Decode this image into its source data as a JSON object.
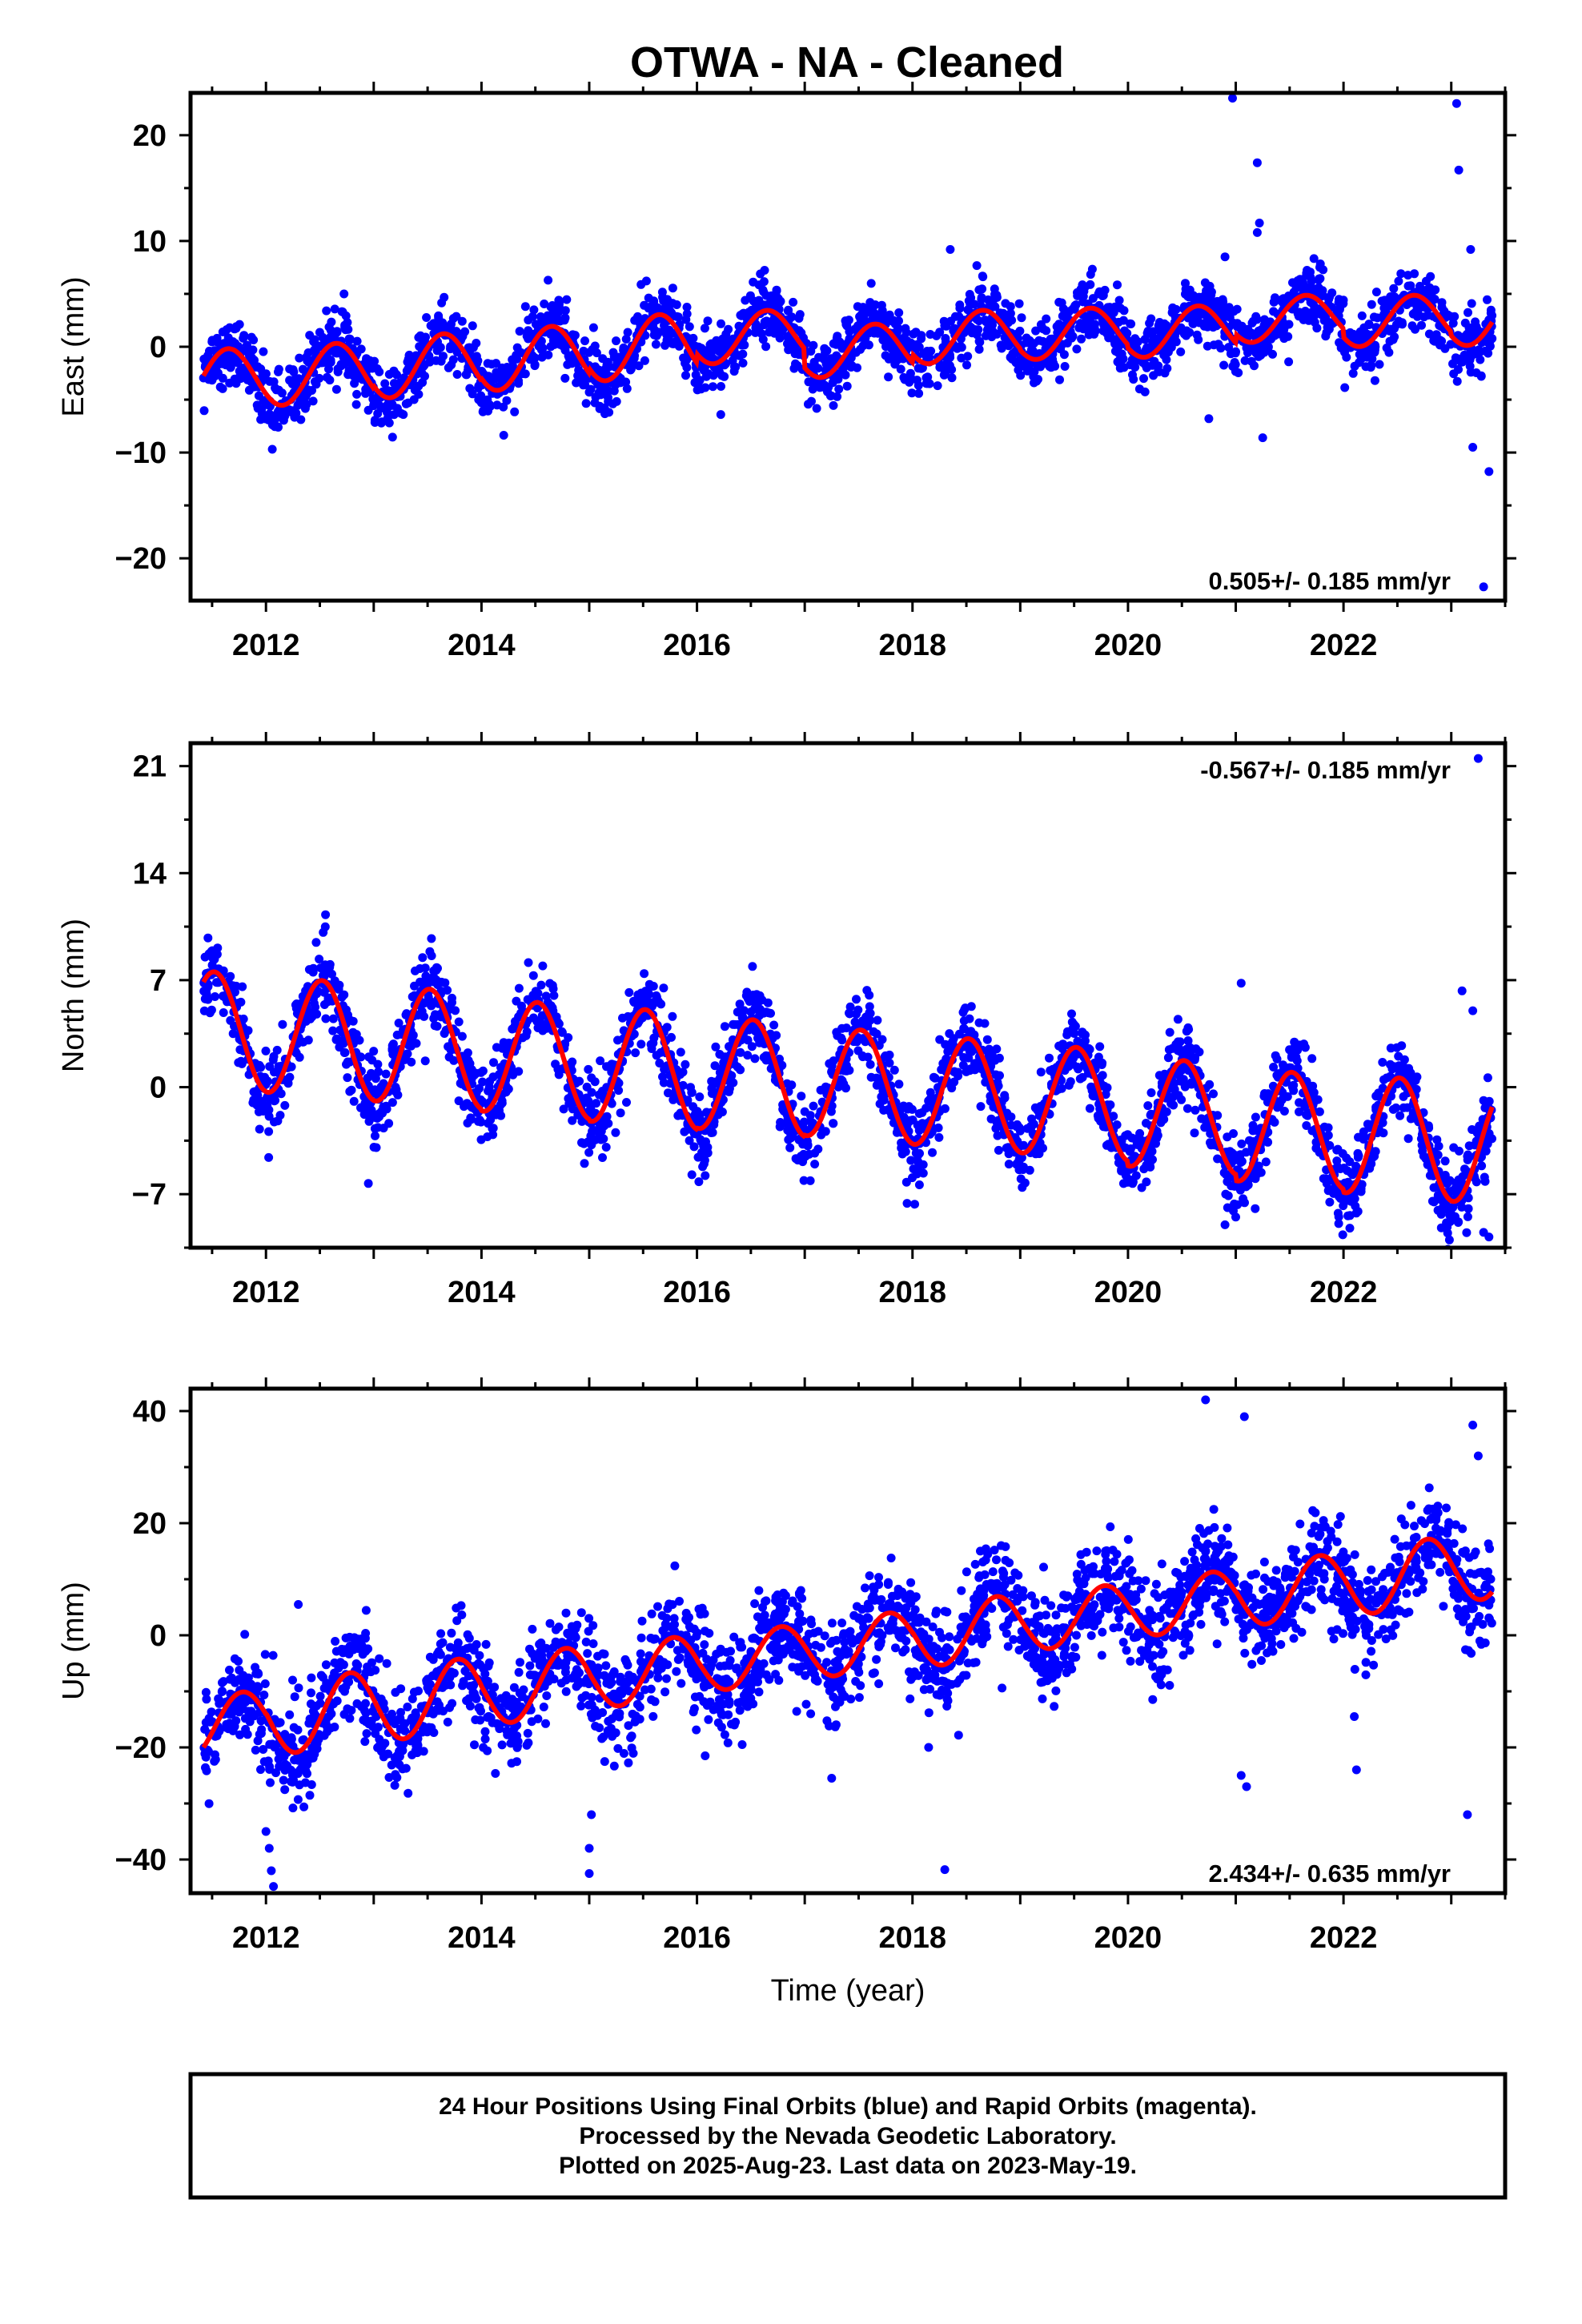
{
  "figure": {
    "title": "OTWA  - NA - Cleaned",
    "footer_lines": [
      "24 Hour Positions Using Final Orbits (blue) and Rapid Orbits (magenta).",
      "Processed by the Nevada Geodetic Laboratory.",
      "Plotted on 2025-Aug-23. Last data on 2023-May-19."
    ],
    "colors": {
      "points": "#0000ff",
      "model": "#ff0000",
      "frame": "#000000"
    }
  },
  "chart_data": [
    {
      "type": "scatter",
      "name": "east",
      "ylabel": "East (mm)",
      "xlabel": "",
      "xlim": [
        2011.3,
        2023.5
      ],
      "ylim": [
        -24,
        24
      ],
      "xticks": [
        2012,
        2014,
        2016,
        2018,
        2020,
        2022
      ],
      "xtick_labels": [
        "2012",
        "2014",
        "2016",
        "2018",
        "2020",
        "2022"
      ],
      "yticks": [
        -20,
        -10,
        0,
        10,
        20
      ],
      "ytick_labels": [
        "−20",
        "−10",
        "0",
        "10",
        "20"
      ],
      "rate_label": "0.505+/- 0.185 mm/yr",
      "rate_label_position": "bottom-right",
      "model": {
        "start": 2011.42,
        "end": 2023.38,
        "trend_mm_per_yr": 0.505,
        "offset_mm": -1.6,
        "annual_amp": [
          2.8,
          2.8,
          2.9,
          2.9,
          3.0,
          2.4,
          2.4,
          2.4,
          2.3,
          2.3,
          2.1,
          2.3,
          2.4
        ],
        "peak_phase": 0.65,
        "level_adjust": [
          -1.5,
          -1.5,
          -1.2,
          -1.0,
          -0.5,
          0.0,
          -1.8,
          -1.0,
          -1.2,
          -1.5,
          -0.8,
          -1.5,
          -1.8
        ]
      },
      "scatter": {
        "count": 2600,
        "noise_mm": 1.5,
        "outliers": [
          [
            2020.97,
            23.5
          ],
          [
            2021.2,
            17.4
          ],
          [
            2021.22,
            11.7
          ],
          [
            2021.2,
            10.8
          ],
          [
            2018.35,
            9.2
          ],
          [
            2023.05,
            23.0
          ],
          [
            2023.07,
            16.7
          ],
          [
            2023.18,
            9.2
          ],
          [
            2023.2,
            -9.5
          ],
          [
            2023.35,
            -11.8
          ],
          [
            2023.3,
            -22.7
          ],
          [
            2020.75,
            -6.8
          ],
          [
            2021.25,
            -8.6
          ],
          [
            2020.9,
            8.5
          ]
        ]
      },
      "sample_points": [
        [
          2011.5,
          -2.5
        ],
        [
          2012.0,
          -3.5
        ],
        [
          2012.7,
          1.5
        ],
        [
          2013.5,
          -3.0
        ],
        [
          2014.6,
          2.0
        ],
        [
          2015.6,
          3.0
        ],
        [
          2016.5,
          -2.0
        ],
        [
          2017.6,
          3.5
        ],
        [
          2018.7,
          4.0
        ],
        [
          2019.7,
          4.5
        ],
        [
          2020.7,
          5.5
        ],
        [
          2021.7,
          6.0
        ],
        [
          2022.7,
          6.0
        ],
        [
          2023.3,
          1.0
        ]
      ]
    },
    {
      "type": "scatter",
      "name": "north",
      "ylabel": "North (mm)",
      "xlabel": "",
      "xlim": [
        2011.3,
        2023.5
      ],
      "ylim": [
        -10.5,
        22.5
      ],
      "xticks": [
        2012,
        2014,
        2016,
        2018,
        2020,
        2022
      ],
      "xtick_labels": [
        "2012",
        "2014",
        "2016",
        "2018",
        "2020",
        "2022"
      ],
      "yticks": [
        -7,
        0,
        7,
        14,
        21
      ],
      "ytick_labels": [
        "−7",
        "0",
        "7",
        "14",
        "21"
      ],
      "rate_label": "-0.567+/- 0.185 mm/yr",
      "rate_label_position": "top-right",
      "model": {
        "start": 2011.42,
        "end": 2023.38,
        "trend_mm_per_yr": -0.567,
        "offset_mm": 3.6,
        "annual_amp": [
          3.8,
          3.8,
          3.8,
          3.7,
          3.8,
          3.7,
          3.6,
          3.6,
          3.6,
          3.6,
          3.7,
          3.9,
          3.9
        ],
        "peak_phase": 0.52,
        "level_adjust": [
          0.2,
          0.2,
          0.2,
          0.0,
          0.0,
          0.0,
          0.0,
          0.0,
          0.0,
          -0.3,
          -0.6,
          -0.6,
          -0.6
        ]
      },
      "scatter": {
        "count": 2600,
        "noise_mm": 1.3,
        "outliers": [
          [
            2023.25,
            21.5
          ],
          [
            2012.95,
            -6.3
          ],
          [
            2023.1,
            6.3
          ],
          [
            2020.9,
            -9.0
          ],
          [
            2021.0,
            -8.5
          ],
          [
            2023.3,
            -9.5
          ],
          [
            2023.35,
            -9.8
          ],
          [
            2021.05,
            6.8
          ],
          [
            2023.2,
            5.0
          ],
          [
            2017.95,
            -7.6
          ]
        ]
      },
      "sample_points": [
        [
          2011.6,
          8.0
        ],
        [
          2012.5,
          8.0
        ],
        [
          2013.5,
          7.0
        ],
        [
          2014.5,
          7.0
        ],
        [
          2015.5,
          6.0
        ],
        [
          2016.5,
          5.0
        ],
        [
          2017.5,
          4.5
        ],
        [
          2018.5,
          4.0
        ],
        [
          2019.5,
          3.5
        ],
        [
          2020.5,
          3.0
        ],
        [
          2021.5,
          2.5
        ],
        [
          2022.5,
          2.0
        ]
      ]
    },
    {
      "type": "scatter",
      "name": "up",
      "ylabel": "Up (mm)",
      "xlabel": "Time (year)",
      "xlim": [
        2011.3,
        2023.5
      ],
      "ylim": [
        -46,
        44
      ],
      "xticks": [
        2012,
        2014,
        2016,
        2018,
        2020,
        2022
      ],
      "xtick_labels": [
        "2012",
        "2014",
        "2016",
        "2018",
        "2020",
        "2022"
      ],
      "yticks": [
        -40,
        -20,
        0,
        20,
        40
      ],
      "ytick_labels": [
        "−40",
        "−20",
        "0",
        "20",
        "40"
      ],
      "rate_label": "2.434+/- 0.635 mm/yr",
      "rate_label_position": "bottom-right",
      "model": {
        "start": 2011.42,
        "end": 2023.38,
        "trend_mm_per_yr": 2.434,
        "offset_mm": -16.5,
        "annual_amp": [
          5.5,
          6.5,
          6.5,
          6.0,
          5.5,
          5.0,
          5.0,
          5.5,
          5.0,
          5.0,
          5.5,
          6.0,
          6.0
        ],
        "peak_phase": 0.78,
        "level_adjust": [
          0,
          0,
          0,
          0,
          0,
          0,
          0,
          0,
          0,
          0,
          0,
          0,
          0
        ]
      },
      "scatter": {
        "count": 2600,
        "noise_mm": 4.5,
        "outliers": [
          [
            2012.0,
            -35.0
          ],
          [
            2012.03,
            -38.0
          ],
          [
            2012.05,
            -42.0
          ],
          [
            2012.07,
            -44.8
          ],
          [
            2015.0,
            -42.5
          ],
          [
            2015.0,
            -38.0
          ],
          [
            2015.02,
            -32.0
          ],
          [
            2018.3,
            -41.8
          ],
          [
            2020.72,
            42.0
          ],
          [
            2021.08,
            39.0
          ],
          [
            2021.1,
            -27.0
          ],
          [
            2021.05,
            -25.0
          ],
          [
            2022.1,
            -14.5
          ],
          [
            2022.12,
            -24.0
          ],
          [
            2023.15,
            -32.0
          ],
          [
            2023.2,
            37.5
          ],
          [
            2023.25,
            32.0
          ],
          [
            2017.25,
            -25.5
          ],
          [
            2012.3,
            5.5
          ],
          [
            2018.15,
            -20.0
          ]
        ]
      },
      "sample_points": [
        [
          2011.5,
          -15.0
        ],
        [
          2012.8,
          -6.0
        ],
        [
          2013.8,
          -4.0
        ],
        [
          2014.8,
          -2.0
        ],
        [
          2015.8,
          0.0
        ],
        [
          2016.8,
          3.0
        ],
        [
          2017.8,
          5.5
        ],
        [
          2018.8,
          8.0
        ],
        [
          2019.8,
          10.0
        ],
        [
          2020.8,
          12.5
        ],
        [
          2021.8,
          15.0
        ],
        [
          2022.8,
          17.5
        ]
      ]
    }
  ]
}
